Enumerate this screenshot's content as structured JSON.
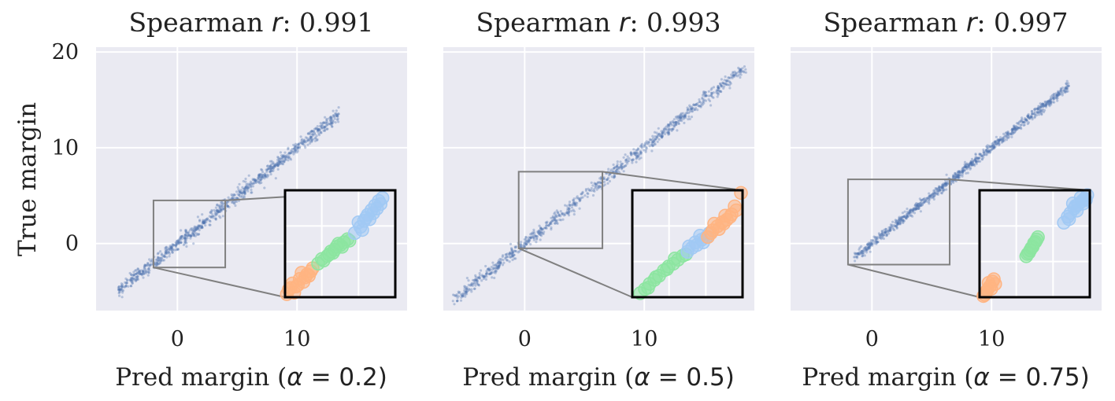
{
  "colors": {
    "panel_bg": "#EAEAF2",
    "grid": "#FFFFFF",
    "scatter": "#4C72B0",
    "cluster_blue": "#A1C9F4",
    "cluster_orange": "#FFB482",
    "cluster_green": "#8DE5A1",
    "zoom_frame": "#808080",
    "inset_frame": "#000000"
  },
  "chart_data": [
    {
      "type": "scatter",
      "title": {
        "prefix": "Spearman ",
        "symbol": "r",
        "suffix": ": 0.991"
      },
      "xlabel": {
        "prefix": "Pred margin (",
        "symbol": "α",
        "suffix": " = 0.2)"
      },
      "ylabel": "True margin",
      "xlim": [
        -6.8,
        19.2
      ],
      "ylim": [
        -7,
        20.5
      ],
      "xticks": [
        0,
        10
      ],
      "yticks": [
        0,
        10,
        20
      ],
      "show_yticklabels": true,
      "grid": true,
      "trend": {
        "x_start": -5.0,
        "x_end": 13.5,
        "spread": 0.35
      },
      "zoom_box": {
        "xlim": [
          -2,
          4
        ],
        "ylim": [
          -2.5,
          4.5
        ]
      },
      "inset_clusters": [
        {
          "color_key": "cluster_orange",
          "points": [
            [
              -1.8,
              -2.0
            ],
            [
              -1.6,
              -1.6
            ],
            [
              -1.4,
              -1.8
            ],
            [
              -1.2,
              -1.3
            ],
            [
              -1.0,
              -1.5
            ],
            [
              -0.8,
              -1.0
            ],
            [
              -0.6,
              -0.8
            ],
            [
              -0.9,
              -1.2
            ],
            [
              -1.5,
              -2.2
            ],
            [
              -1.1,
              -0.9
            ],
            [
              -0.7,
              -1.1
            ],
            [
              -1.3,
              -1.7
            ],
            [
              -1.7,
              -1.9
            ],
            [
              -0.5,
              -0.6
            ],
            [
              -1.9,
              -2.3
            ]
          ]
        },
        {
          "color_key": "cluster_green",
          "points": [
            [
              -0.2,
              -0.3
            ],
            [
              0.0,
              0.0
            ],
            [
              0.3,
              0.2
            ],
            [
              0.5,
              0.5
            ],
            [
              0.7,
              0.6
            ],
            [
              1.0,
              0.9
            ],
            [
              1.2,
              1.1
            ],
            [
              0.8,
              0.8
            ],
            [
              0.4,
              0.3
            ],
            [
              0.1,
              -0.1
            ],
            [
              1.4,
              1.3
            ],
            [
              0.6,
              0.4
            ],
            [
              0.9,
              1.0
            ],
            [
              1.1,
              0.8
            ],
            [
              1.5,
              1.2
            ]
          ]
        },
        {
          "color_key": "cluster_blue",
          "points": [
            [
              1.8,
              1.7
            ],
            [
              2.1,
              2.1
            ],
            [
              2.3,
              2.5
            ],
            [
              2.5,
              2.9
            ],
            [
              2.7,
              3.2
            ],
            [
              2.9,
              3.5
            ],
            [
              3.1,
              3.8
            ],
            [
              3.3,
              4.0
            ],
            [
              2.4,
              2.7
            ],
            [
              2.0,
              2.4
            ],
            [
              2.6,
              2.6
            ],
            [
              3.0,
              3.3
            ],
            [
              2.2,
              1.9
            ],
            [
              2.8,
              3.0
            ],
            [
              3.2,
              3.6
            ]
          ]
        }
      ]
    },
    {
      "type": "scatter",
      "title": {
        "prefix": "Spearman ",
        "symbol": "r",
        "suffix": ": 0.993"
      },
      "xlabel": {
        "prefix": "Pred margin (",
        "symbol": "α",
        "suffix": " = 0.5)"
      },
      "ylabel": "",
      "xlim": [
        -6.8,
        19.2
      ],
      "ylim": [
        -7,
        20.5
      ],
      "xticks": [
        0,
        10
      ],
      "yticks": [
        0,
        10,
        20
      ],
      "show_yticklabels": false,
      "grid": true,
      "trend": {
        "x_start": -6.0,
        "x_end": 18.5,
        "spread": 0.35
      },
      "zoom_box": {
        "xlim": [
          -0.5,
          6.5
        ],
        "ylim": [
          -0.5,
          7.5
        ]
      },
      "inset_clusters": [
        {
          "color_key": "cluster_green",
          "points": [
            [
              0.0,
              -0.2
            ],
            [
              0.3,
              0.1
            ],
            [
              0.6,
              0.5
            ],
            [
              0.9,
              0.8
            ],
            [
              1.2,
              1.1
            ],
            [
              1.5,
              1.5
            ],
            [
              1.8,
              1.8
            ],
            [
              2.1,
              2.0
            ],
            [
              2.4,
              2.3
            ],
            [
              2.7,
              2.6
            ],
            [
              0.5,
              0.2
            ],
            [
              1.0,
              1.0
            ],
            [
              1.7,
              1.6
            ],
            [
              2.2,
              2.4
            ],
            [
              2.9,
              2.7
            ]
          ]
        },
        {
          "color_key": "cluster_blue",
          "points": [
            [
              3.0,
              2.9
            ],
            [
              3.3,
              3.2
            ],
            [
              3.6,
              3.4
            ],
            [
              3.9,
              3.8
            ],
            [
              4.2,
              4.0
            ],
            [
              3.5,
              3.6
            ],
            [
              3.1,
              3.3
            ],
            [
              4.0,
              3.6
            ],
            [
              3.8,
              4.1
            ],
            [
              4.4,
              4.3
            ]
          ]
        },
        {
          "color_key": "cluster_orange",
          "points": [
            [
              4.3,
              4.0
            ],
            [
              4.6,
              4.5
            ],
            [
              4.9,
              4.8
            ],
            [
              5.2,
              5.1
            ],
            [
              5.5,
              5.3
            ],
            [
              5.8,
              5.7
            ],
            [
              6.1,
              6.0
            ],
            [
              6.4,
              7.3
            ],
            [
              5.0,
              4.6
            ],
            [
              4.7,
              5.0
            ],
            [
              5.4,
              5.6
            ],
            [
              6.0,
              6.3
            ],
            [
              5.7,
              5.5
            ],
            [
              4.5,
              4.3
            ],
            [
              5.3,
              5.0
            ]
          ]
        }
      ]
    },
    {
      "type": "scatter",
      "title": {
        "prefix": "Spearman ",
        "symbol": "r",
        "suffix": ": 0.997"
      },
      "xlabel": {
        "prefix": "Pred margin (",
        "symbol": "α",
        "suffix": " = 0.75)"
      },
      "ylabel": "",
      "xlim": [
        -6.8,
        19.2
      ],
      "ylim": [
        -7,
        20.5
      ],
      "xticks": [
        0,
        10
      ],
      "yticks": [
        0,
        10,
        20
      ],
      "show_yticklabels": false,
      "grid": true,
      "trend": {
        "x_start": -1.5,
        "x_end": 16.5,
        "spread": 0.25
      },
      "zoom_box": {
        "xlim": [
          -2,
          6.5
        ],
        "ylim": [
          -2.2,
          6.7
        ]
      },
      "inset_clusters": [
        {
          "color_key": "cluster_orange",
          "points": [
            [
              -1.6,
              -2.0
            ],
            [
              -1.4,
              -1.6
            ],
            [
              -1.2,
              -1.3
            ],
            [
              -1.0,
              -0.9
            ],
            [
              -0.8,
              -1.1
            ],
            [
              -1.5,
              -1.8
            ],
            [
              -1.1,
              -1.5
            ],
            [
              -0.9,
              -0.7
            ],
            [
              -1.3,
              -1.0
            ],
            [
              -1.7,
              -2.1
            ]
          ]
        },
        {
          "color_key": "cluster_green",
          "points": [
            [
              1.6,
              1.2
            ],
            [
              1.8,
              1.5
            ],
            [
              2.0,
              1.9
            ],
            [
              2.2,
              2.3
            ],
            [
              2.4,
              2.6
            ],
            [
              1.9,
              1.7
            ],
            [
              2.1,
              2.0
            ],
            [
              2.3,
              2.4
            ],
            [
              1.7,
              1.4
            ],
            [
              2.5,
              2.8
            ]
          ]
        },
        {
          "color_key": "cluster_blue",
          "points": [
            [
              4.5,
              4.0
            ],
            [
              4.8,
              4.5
            ],
            [
              5.0,
              4.8
            ],
            [
              5.3,
              5.2
            ],
            [
              5.6,
              5.5
            ],
            [
              5.9,
              5.8
            ],
            [
              6.1,
              6.0
            ],
            [
              6.3,
              6.3
            ],
            [
              5.5,
              5.0
            ],
            [
              5.2,
              5.6
            ],
            [
              4.9,
              4.3
            ],
            [
              5.8,
              6.1
            ],
            [
              6.0,
              5.6
            ],
            [
              5.4,
              5.4
            ],
            [
              6.2,
              5.9
            ]
          ]
        }
      ]
    }
  ]
}
